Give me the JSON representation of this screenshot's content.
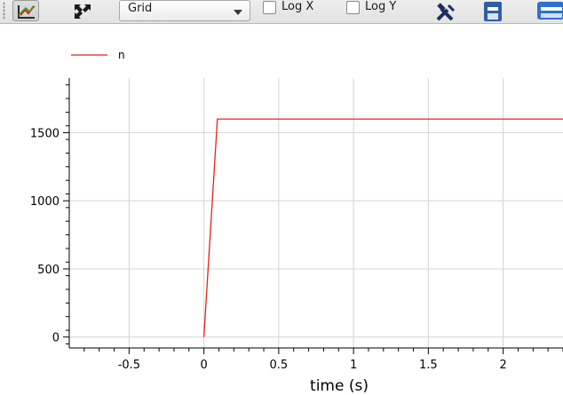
{
  "toolbar": {
    "grid_combo": {
      "selected": "Grid"
    },
    "log_x": {
      "label": "Log X",
      "checked": false
    },
    "log_y": {
      "label": "Log Y",
      "checked": false
    },
    "buttons": [
      "fit-in-view",
      "pan",
      "setup",
      "export",
      "print"
    ]
  },
  "colors": {
    "series": "#e8211b",
    "grid": "#d4d4d4",
    "axis": "#000000"
  },
  "chart_data": {
    "type": "line",
    "title": "",
    "xlabel": "time (s)",
    "ylabel": "",
    "xlim": [
      -0.9,
      2.4
    ],
    "ylim": [
      -80,
      1900
    ],
    "x_ticks": [
      -0.5,
      0,
      0.5,
      1,
      1.5,
      2
    ],
    "x_tick_labels": [
      "-0.5",
      "0",
      "0.5",
      "1",
      "1.5",
      "2"
    ],
    "y_ticks": [
      0,
      500,
      1000,
      1500
    ],
    "y_tick_labels": [
      "0",
      "500",
      "1000",
      "1500"
    ],
    "grid": true,
    "legend_position": "top-left",
    "series": [
      {
        "name": "n",
        "x": [
          0,
          0.09,
          0.5,
          1,
          1.5,
          2,
          2.4
        ],
        "y": [
          0,
          1600,
          1600,
          1600,
          1600,
          1600,
          1600
        ]
      }
    ]
  }
}
